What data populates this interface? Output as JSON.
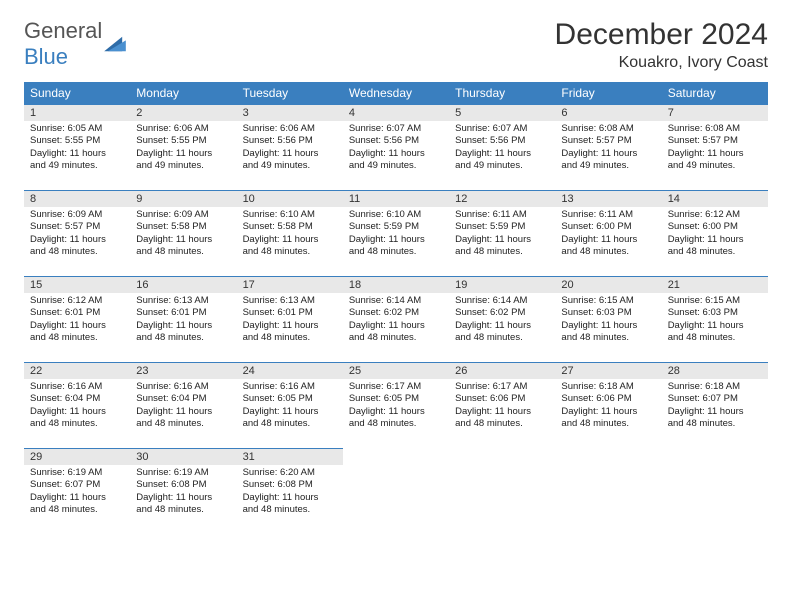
{
  "logo": {
    "text1": "General",
    "text2": "Blue"
  },
  "title": {
    "month": "December 2024",
    "location": "Kouakro, Ivory Coast"
  },
  "header_bg": "#3a7fbf",
  "daynum_bg": "#e8e8e8",
  "weekdays": [
    "Sunday",
    "Monday",
    "Tuesday",
    "Wednesday",
    "Thursday",
    "Friday",
    "Saturday"
  ],
  "days": [
    {
      "n": "1",
      "sr": "6:05 AM",
      "ss": "5:55 PM",
      "dl": "11 hours and 49 minutes."
    },
    {
      "n": "2",
      "sr": "6:06 AM",
      "ss": "5:55 PM",
      "dl": "11 hours and 49 minutes."
    },
    {
      "n": "3",
      "sr": "6:06 AM",
      "ss": "5:56 PM",
      "dl": "11 hours and 49 minutes."
    },
    {
      "n": "4",
      "sr": "6:07 AM",
      "ss": "5:56 PM",
      "dl": "11 hours and 49 minutes."
    },
    {
      "n": "5",
      "sr": "6:07 AM",
      "ss": "5:56 PM",
      "dl": "11 hours and 49 minutes."
    },
    {
      "n": "6",
      "sr": "6:08 AM",
      "ss": "5:57 PM",
      "dl": "11 hours and 49 minutes."
    },
    {
      "n": "7",
      "sr": "6:08 AM",
      "ss": "5:57 PM",
      "dl": "11 hours and 49 minutes."
    },
    {
      "n": "8",
      "sr": "6:09 AM",
      "ss": "5:57 PM",
      "dl": "11 hours and 48 minutes."
    },
    {
      "n": "9",
      "sr": "6:09 AM",
      "ss": "5:58 PM",
      "dl": "11 hours and 48 minutes."
    },
    {
      "n": "10",
      "sr": "6:10 AM",
      "ss": "5:58 PM",
      "dl": "11 hours and 48 minutes."
    },
    {
      "n": "11",
      "sr": "6:10 AM",
      "ss": "5:59 PM",
      "dl": "11 hours and 48 minutes."
    },
    {
      "n": "12",
      "sr": "6:11 AM",
      "ss": "5:59 PM",
      "dl": "11 hours and 48 minutes."
    },
    {
      "n": "13",
      "sr": "6:11 AM",
      "ss": "6:00 PM",
      "dl": "11 hours and 48 minutes."
    },
    {
      "n": "14",
      "sr": "6:12 AM",
      "ss": "6:00 PM",
      "dl": "11 hours and 48 minutes."
    },
    {
      "n": "15",
      "sr": "6:12 AM",
      "ss": "6:01 PM",
      "dl": "11 hours and 48 minutes."
    },
    {
      "n": "16",
      "sr": "6:13 AM",
      "ss": "6:01 PM",
      "dl": "11 hours and 48 minutes."
    },
    {
      "n": "17",
      "sr": "6:13 AM",
      "ss": "6:01 PM",
      "dl": "11 hours and 48 minutes."
    },
    {
      "n": "18",
      "sr": "6:14 AM",
      "ss": "6:02 PM",
      "dl": "11 hours and 48 minutes."
    },
    {
      "n": "19",
      "sr": "6:14 AM",
      "ss": "6:02 PM",
      "dl": "11 hours and 48 minutes."
    },
    {
      "n": "20",
      "sr": "6:15 AM",
      "ss": "6:03 PM",
      "dl": "11 hours and 48 minutes."
    },
    {
      "n": "21",
      "sr": "6:15 AM",
      "ss": "6:03 PM",
      "dl": "11 hours and 48 minutes."
    },
    {
      "n": "22",
      "sr": "6:16 AM",
      "ss": "6:04 PM",
      "dl": "11 hours and 48 minutes."
    },
    {
      "n": "23",
      "sr": "6:16 AM",
      "ss": "6:04 PM",
      "dl": "11 hours and 48 minutes."
    },
    {
      "n": "24",
      "sr": "6:16 AM",
      "ss": "6:05 PM",
      "dl": "11 hours and 48 minutes."
    },
    {
      "n": "25",
      "sr": "6:17 AM",
      "ss": "6:05 PM",
      "dl": "11 hours and 48 minutes."
    },
    {
      "n": "26",
      "sr": "6:17 AM",
      "ss": "6:06 PM",
      "dl": "11 hours and 48 minutes."
    },
    {
      "n": "27",
      "sr": "6:18 AM",
      "ss": "6:06 PM",
      "dl": "11 hours and 48 minutes."
    },
    {
      "n": "28",
      "sr": "6:18 AM",
      "ss": "6:07 PM",
      "dl": "11 hours and 48 minutes."
    },
    {
      "n": "29",
      "sr": "6:19 AM",
      "ss": "6:07 PM",
      "dl": "11 hours and 48 minutes."
    },
    {
      "n": "30",
      "sr": "6:19 AM",
      "ss": "6:08 PM",
      "dl": "11 hours and 48 minutes."
    },
    {
      "n": "31",
      "sr": "6:20 AM",
      "ss": "6:08 PM",
      "dl": "11 hours and 48 minutes."
    }
  ],
  "labels": {
    "sunrise": "Sunrise: ",
    "sunset": "Sunset: ",
    "daylight": "Daylight: "
  }
}
